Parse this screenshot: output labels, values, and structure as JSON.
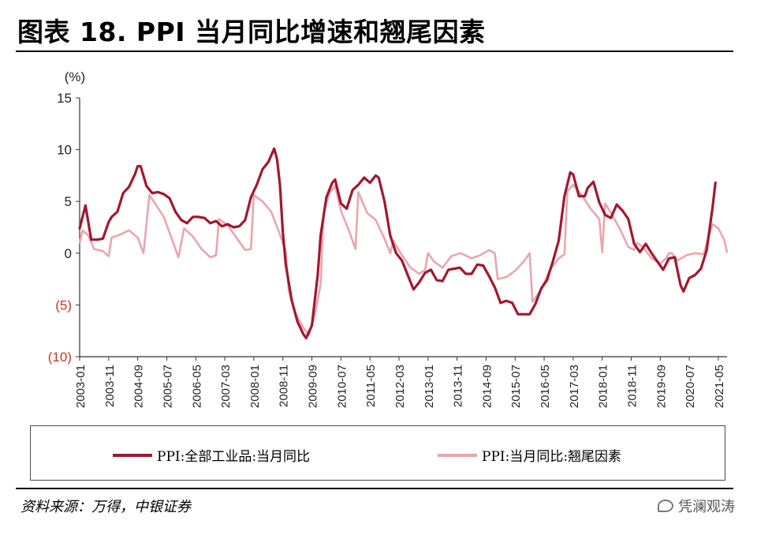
{
  "title": "图表 18. PPI 当月同比增速和翘尾因素",
  "source": "资料来源：万得，中银证券",
  "watermark": "凭澜观涛",
  "colors": {
    "ppi": "#a0182f",
    "carryover": "#e9a6ad",
    "negative_tick": "#c0392b",
    "axis": "#333333"
  },
  "chart_data": {
    "type": "line",
    "ylabel": "(%)",
    "ylim": [
      -10,
      15
    ],
    "yticks": [
      15,
      10,
      5,
      0,
      -5,
      -10
    ],
    "ytick_labels": [
      "15",
      "10",
      "5",
      "0",
      "(5)",
      "(10)"
    ],
    "x_start": "2003-01",
    "x_end": "2021-08",
    "xtick_labels": [
      "2003-01",
      "2003-11",
      "2004-09",
      "2005-07",
      "2006-05",
      "2007-03",
      "2008-01",
      "2008-11",
      "2009-09",
      "2010-07",
      "2011-05",
      "2012-03",
      "2013-01",
      "2013-11",
      "2014-09",
      "2015-07",
      "2016-05",
      "2017-03",
      "2018-01",
      "2018-11",
      "2019-09",
      "2020-07",
      "2021-05"
    ],
    "legend_position": "bottom",
    "series": [
      {
        "name": "PPI:全部工业品:当月同比",
        "points": [
          [
            "2003-01",
            2.4
          ],
          [
            "2003-03",
            4.6
          ],
          [
            "2003-05",
            1.3
          ],
          [
            "2003-07",
            1.3
          ],
          [
            "2003-09",
            1.4
          ],
          [
            "2003-11",
            3.0
          ],
          [
            "2003-12",
            3.5
          ],
          [
            "2004-02",
            4.0
          ],
          [
            "2004-04",
            5.8
          ],
          [
            "2004-06",
            6.4
          ],
          [
            "2004-08",
            7.6
          ],
          [
            "2004-09",
            8.4
          ],
          [
            "2004-10",
            8.4
          ],
          [
            "2004-12",
            6.5
          ],
          [
            "2005-02",
            5.8
          ],
          [
            "2005-04",
            5.9
          ],
          [
            "2005-06",
            5.7
          ],
          [
            "2005-08",
            5.3
          ],
          [
            "2005-10",
            4.0
          ],
          [
            "2005-12",
            3.2
          ],
          [
            "2006-02",
            2.9
          ],
          [
            "2006-04",
            3.5
          ],
          [
            "2006-06",
            3.5
          ],
          [
            "2006-08",
            3.4
          ],
          [
            "2006-10",
            2.9
          ],
          [
            "2006-12",
            3.1
          ],
          [
            "2007-02",
            2.6
          ],
          [
            "2007-04",
            2.8
          ],
          [
            "2007-06",
            2.5
          ],
          [
            "2007-08",
            2.6
          ],
          [
            "2007-10",
            3.2
          ],
          [
            "2007-12",
            5.4
          ],
          [
            "2008-02",
            6.6
          ],
          [
            "2008-04",
            8.1
          ],
          [
            "2008-06",
            8.8
          ],
          [
            "2008-08",
            10.1
          ],
          [
            "2008-09",
            9.1
          ],
          [
            "2008-10",
            6.6
          ],
          [
            "2008-11",
            2.0
          ],
          [
            "2008-12",
            -1.1
          ],
          [
            "2009-02",
            -4.5
          ],
          [
            "2009-04",
            -6.6
          ],
          [
            "2009-06",
            -7.8
          ],
          [
            "2009-07",
            -8.2
          ],
          [
            "2009-09",
            -7.0
          ],
          [
            "2009-11",
            -2.1
          ],
          [
            "2009-12",
            1.7
          ],
          [
            "2010-02",
            5.4
          ],
          [
            "2010-04",
            6.8
          ],
          [
            "2010-05",
            7.1
          ],
          [
            "2010-07",
            4.8
          ],
          [
            "2010-09",
            4.3
          ],
          [
            "2010-11",
            6.1
          ],
          [
            "2011-01",
            6.6
          ],
          [
            "2011-03",
            7.3
          ],
          [
            "2011-05",
            6.8
          ],
          [
            "2011-07",
            7.5
          ],
          [
            "2011-08",
            7.3
          ],
          [
            "2011-10",
            5.0
          ],
          [
            "2011-12",
            1.7
          ],
          [
            "2012-02",
            0.0
          ],
          [
            "2012-04",
            -0.7
          ],
          [
            "2012-06",
            -2.1
          ],
          [
            "2012-08",
            -3.5
          ],
          [
            "2012-10",
            -2.8
          ],
          [
            "2012-12",
            -1.9
          ],
          [
            "2013-02",
            -1.6
          ],
          [
            "2013-04",
            -2.6
          ],
          [
            "2013-06",
            -2.7
          ],
          [
            "2013-08",
            -1.6
          ],
          [
            "2013-10",
            -1.5
          ],
          [
            "2013-12",
            -1.4
          ],
          [
            "2014-02",
            -2.0
          ],
          [
            "2014-04",
            -2.0
          ],
          [
            "2014-06",
            -1.1
          ],
          [
            "2014-08",
            -1.2
          ],
          [
            "2014-10",
            -2.2
          ],
          [
            "2014-12",
            -3.3
          ],
          [
            "2015-02",
            -4.8
          ],
          [
            "2015-04",
            -4.6
          ],
          [
            "2015-06",
            -4.8
          ],
          [
            "2015-08",
            -5.9
          ],
          [
            "2015-10",
            -5.9
          ],
          [
            "2015-12",
            -5.9
          ],
          [
            "2016-02",
            -4.9
          ],
          [
            "2016-04",
            -3.4
          ],
          [
            "2016-06",
            -2.6
          ],
          [
            "2016-08",
            -0.8
          ],
          [
            "2016-10",
            1.2
          ],
          [
            "2016-12",
            5.5
          ],
          [
            "2017-02",
            7.8
          ],
          [
            "2017-03",
            7.6
          ],
          [
            "2017-05",
            5.5
          ],
          [
            "2017-07",
            5.5
          ],
          [
            "2017-08",
            6.3
          ],
          [
            "2017-10",
            6.9
          ],
          [
            "2017-12",
            4.9
          ],
          [
            "2018-02",
            3.7
          ],
          [
            "2018-04",
            3.4
          ],
          [
            "2018-06",
            4.7
          ],
          [
            "2018-08",
            4.1
          ],
          [
            "2018-10",
            3.3
          ],
          [
            "2018-12",
            0.9
          ],
          [
            "2019-02",
            0.1
          ],
          [
            "2019-04",
            0.9
          ],
          [
            "2019-06",
            0.0
          ],
          [
            "2019-08",
            -0.8
          ],
          [
            "2019-10",
            -1.6
          ],
          [
            "2019-12",
            -0.5
          ],
          [
            "2020-02",
            -0.4
          ],
          [
            "2020-04",
            -3.1
          ],
          [
            "2020-05",
            -3.7
          ],
          [
            "2020-07",
            -2.4
          ],
          [
            "2020-09",
            -2.1
          ],
          [
            "2020-11",
            -1.5
          ],
          [
            "2021-01",
            0.3
          ],
          [
            "2021-03",
            4.4
          ],
          [
            "2021-04",
            6.8
          ]
        ]
      },
      {
        "name": "PPI:当月同比:翘尾因素",
        "points": [
          [
            "2003-01",
            1.0
          ],
          [
            "2003-02",
            2.2
          ],
          [
            "2003-04",
            1.7
          ],
          [
            "2003-06",
            0.4
          ],
          [
            "2003-09",
            0.2
          ],
          [
            "2003-11",
            -0.3
          ],
          [
            "2003-12",
            1.5
          ],
          [
            "2004-03",
            1.8
          ],
          [
            "2004-06",
            2.2
          ],
          [
            "2004-09",
            1.5
          ],
          [
            "2004-11",
            0.0
          ],
          [
            "2005-01",
            5.6
          ],
          [
            "2005-03",
            4.8
          ],
          [
            "2005-06",
            3.5
          ],
          [
            "2005-09",
            1.2
          ],
          [
            "2005-11",
            -0.4
          ],
          [
            "2006-01",
            2.4
          ],
          [
            "2006-04",
            1.6
          ],
          [
            "2006-07",
            0.4
          ],
          [
            "2006-10",
            -0.4
          ],
          [
            "2006-12",
            -0.2
          ],
          [
            "2007-01",
            3.3
          ],
          [
            "2007-04",
            2.7
          ],
          [
            "2007-07",
            1.5
          ],
          [
            "2007-10",
            0.3
          ],
          [
            "2007-12",
            0.4
          ],
          [
            "2008-01",
            5.6
          ],
          [
            "2008-04",
            5.0
          ],
          [
            "2008-07",
            4.0
          ],
          [
            "2008-10",
            1.8
          ],
          [
            "2008-12",
            0.2
          ],
          [
            "2009-01",
            -3.6
          ],
          [
            "2009-03",
            -5.6
          ],
          [
            "2009-06",
            -7.2
          ],
          [
            "2009-08",
            -7.9
          ],
          [
            "2009-10",
            -6.0
          ],
          [
            "2009-12",
            -3.0
          ],
          [
            "2010-01",
            3.8
          ],
          [
            "2010-03",
            5.8
          ],
          [
            "2010-05",
            6.5
          ],
          [
            "2010-07",
            4.1
          ],
          [
            "2010-10",
            2.0
          ],
          [
            "2010-12",
            0.4
          ],
          [
            "2011-01",
            5.9
          ],
          [
            "2011-04",
            3.9
          ],
          [
            "2011-07",
            3.2
          ],
          [
            "2011-10",
            1.4
          ],
          [
            "2011-12",
            0.0
          ],
          [
            "2012-01",
            1.2
          ],
          [
            "2012-04",
            -0.2
          ],
          [
            "2012-07",
            -1.4
          ],
          [
            "2012-10",
            -2.0
          ],
          [
            "2012-12",
            -1.6
          ],
          [
            "2013-01",
            0.0
          ],
          [
            "2013-03",
            -0.8
          ],
          [
            "2013-06",
            -1.4
          ],
          [
            "2013-09",
            -0.3
          ],
          [
            "2013-12",
            0.0
          ],
          [
            "2014-01",
            -0.1
          ],
          [
            "2014-04",
            -0.5
          ],
          [
            "2014-07",
            -0.2
          ],
          [
            "2014-10",
            0.3
          ],
          [
            "2014-12",
            0.0
          ],
          [
            "2015-01",
            -2.5
          ],
          [
            "2015-04",
            -2.3
          ],
          [
            "2015-07",
            -1.7
          ],
          [
            "2015-10",
            -0.8
          ],
          [
            "2015-12",
            0.0
          ],
          [
            "2016-01",
            -4.7
          ],
          [
            "2016-04",
            -3.5
          ],
          [
            "2016-07",
            -1.6
          ],
          [
            "2016-10",
            -0.5
          ],
          [
            "2016-12",
            -0.1
          ],
          [
            "2017-01",
            6.0
          ],
          [
            "2017-03",
            6.6
          ],
          [
            "2017-06",
            5.6
          ],
          [
            "2017-09",
            4.3
          ],
          [
            "2017-12",
            3.3
          ],
          [
            "2018-01",
            0.1
          ],
          [
            "2018-02",
            4.8
          ],
          [
            "2018-04",
            3.9
          ],
          [
            "2018-07",
            2.4
          ],
          [
            "2018-10",
            0.6
          ],
          [
            "2018-12",
            0.3
          ],
          [
            "2019-01",
            1.0
          ],
          [
            "2019-03",
            0.6
          ],
          [
            "2019-06",
            -0.5
          ],
          [
            "2019-09",
            -1.0
          ],
          [
            "2019-11",
            -0.5
          ],
          [
            "2019-12",
            0.0
          ],
          [
            "2020-01",
            0.0
          ],
          [
            "2020-03",
            -0.7
          ],
          [
            "2020-06",
            -0.2
          ],
          [
            "2020-09",
            0.0
          ],
          [
            "2020-12",
            -0.1
          ],
          [
            "2021-01",
            1.0
          ],
          [
            "2021-03",
            2.8
          ],
          [
            "2021-05",
            2.4
          ],
          [
            "2021-07",
            1.3
          ],
          [
            "2021-08",
            0.1
          ]
        ]
      }
    ]
  }
}
